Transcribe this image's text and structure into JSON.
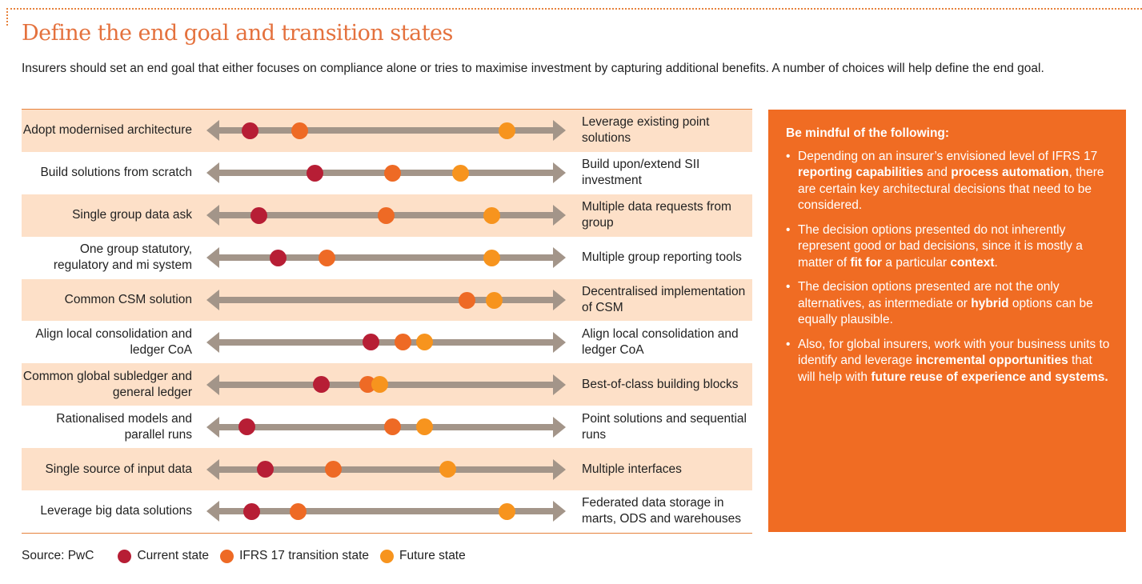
{
  "title": "Define the end goal and transition states",
  "intro": "Insurers should set an end goal that either focuses on compliance alone or tries to maximise investment by capturing additional benefits. A number of choices will help define the end goal.",
  "colors": {
    "current": "#b71e35",
    "transition": "#ee6a25",
    "future": "#f7941e",
    "arrow": "#a39589",
    "accent": "#f06c23",
    "shade": "#fde0c8"
  },
  "rows": [
    {
      "left": "Adopt modernised architecture",
      "right": "Leverage existing point solutions",
      "current": 0.06,
      "transition": 0.22,
      "future": 0.89
    },
    {
      "left": "Build solutions from scratch",
      "right": "Build upon/extend SII investment",
      "current": 0.27,
      "transition": 0.52,
      "future": 0.74
    },
    {
      "left": "Single group data ask",
      "right": "Multiple data requests from group",
      "current": 0.09,
      "transition": 0.5,
      "future": 0.84
    },
    {
      "left": "One group statutory, regulatory and mi system",
      "right": "Multiple group reporting tools",
      "current": 0.15,
      "transition": 0.31,
      "future": 0.84
    },
    {
      "left": "Common CSM solution",
      "right": "Decentralised implementation of CSM",
      "current": null,
      "transition": 0.76,
      "future": 0.85
    },
    {
      "left": "Align local consolidation and ledger CoA",
      "right": "Align local consolidation and ledger CoA",
      "current": 0.45,
      "transition": 0.555,
      "future": 0.625
    },
    {
      "left": "Common global subledger and general ledger",
      "right": "Best-of-class building blocks",
      "current": 0.29,
      "transition": 0.44,
      "future": 0.48
    },
    {
      "left": "Rationalised models and parallel runs",
      "right": "Point solutions and sequential runs",
      "current": 0.05,
      "transition": 0.52,
      "future": 0.625
    },
    {
      "left": "Single source of input data",
      "right": "Multiple interfaces",
      "current": 0.11,
      "transition": 0.33,
      "future": 0.7
    },
    {
      "left": "Leverage big data solutions",
      "right": "Federated data storage in marts, ODS and warehouses",
      "current": 0.065,
      "transition": 0.215,
      "future": 0.89
    }
  ],
  "sidebox": {
    "heading": "Be mindful of the following:",
    "bullets": [
      [
        {
          "t": "Depending on an insurer’s envisioned level of IFRS 17 ",
          "b": false
        },
        {
          "t": "reporting capabilities",
          "b": true
        },
        {
          "t": " and ",
          "b": false
        },
        {
          "t": "process automation",
          "b": true
        },
        {
          "t": ", there are certain key architectural decisions that need to be considered.",
          "b": false
        }
      ],
      [
        {
          "t": "The decision options presented do not inherently represent good or bad decisions, since it is mostly a matter of ",
          "b": false
        },
        {
          "t": "fit for",
          "b": true
        },
        {
          "t": " a particular ",
          "b": false
        },
        {
          "t": "context",
          "b": true
        },
        {
          "t": ".",
          "b": false
        }
      ],
      [
        {
          "t": "The decision options presented are not the only alternatives, as intermediate or ",
          "b": false
        },
        {
          "t": "hybrid",
          "b": true
        },
        {
          "t": " options can be equally plausible.",
          "b": false
        }
      ],
      [
        {
          "t": "Also, for global insurers, work with your business units to identify and leverage ",
          "b": false
        },
        {
          "t": "incremental opportunities",
          "b": true
        },
        {
          "t": " that will help with ",
          "b": false
        },
        {
          "t": "future reuse of experience and systems.",
          "b": true
        }
      ]
    ]
  },
  "legend": {
    "source": "Source: PwC",
    "current": "Current state",
    "transition": "IFRS 17 transition state",
    "future": "Future state"
  }
}
